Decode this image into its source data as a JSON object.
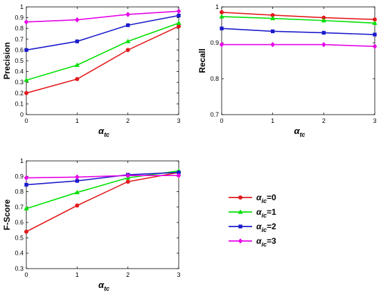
{
  "chart_data": [
    {
      "type": "line",
      "ylabel": "Precision",
      "xlabel": {
        "main": "α",
        "sub": "tc"
      },
      "x": [
        0,
        1,
        2,
        3
      ],
      "xticks": [
        "0",
        "1",
        "2",
        "3"
      ],
      "ylim": [
        0,
        1
      ],
      "yticks": [
        "0",
        "0.1",
        "0.2",
        "0.3",
        "0.4",
        "0.5",
        "0.6",
        "0.7",
        "0.8",
        "0.9",
        "1"
      ],
      "series": [
        {
          "name": "αic=0",
          "values": [
            0.2,
            0.33,
            0.6,
            0.82
          ]
        },
        {
          "name": "αic=1",
          "values": [
            0.32,
            0.46,
            0.68,
            0.85
          ]
        },
        {
          "name": "αic=2",
          "values": [
            0.6,
            0.68,
            0.83,
            0.92
          ]
        },
        {
          "name": "αic=3",
          "values": [
            0.86,
            0.88,
            0.93,
            0.96
          ]
        }
      ]
    },
    {
      "type": "line",
      "ylabel": "Recall",
      "xlabel": {
        "main": "α",
        "sub": "tc"
      },
      "x": [
        0,
        1,
        2,
        3
      ],
      "xticks": [
        "0",
        "1",
        "2",
        "3"
      ],
      "ylim": [
        0.7,
        1
      ],
      "yticks": [
        "0.7",
        "0.8",
        "0.9",
        "1"
      ],
      "series": [
        {
          "name": "αic=0",
          "values": [
            0.985,
            0.977,
            0.97,
            0.965
          ]
        },
        {
          "name": "αic=1",
          "values": [
            0.973,
            0.968,
            0.962,
            0.955
          ]
        },
        {
          "name": "αic=2",
          "values": [
            0.94,
            0.932,
            0.928,
            0.923
          ]
        },
        {
          "name": "αic=3",
          "values": [
            0.895,
            0.895,
            0.895,
            0.89
          ]
        }
      ]
    },
    {
      "type": "line",
      "ylabel": "F-Score",
      "xlabel": {
        "main": "α",
        "sub": "tc"
      },
      "x": [
        0,
        1,
        2,
        3
      ],
      "xticks": [
        "0",
        "1",
        "2",
        "3"
      ],
      "ylim": [
        0.3,
        1
      ],
      "yticks": [
        "0.3",
        "0.4",
        "0.5",
        "0.6",
        "0.7",
        "0.8",
        "0.9",
        "1"
      ],
      "series": [
        {
          "name": "αic=0",
          "values": [
            0.54,
            0.71,
            0.865,
            0.925
          ]
        },
        {
          "name": "αic=1",
          "values": [
            0.69,
            0.795,
            0.89,
            0.935
          ]
        },
        {
          "name": "αic=2",
          "values": [
            0.845,
            0.87,
            0.91,
            0.925
          ]
        },
        {
          "name": "αic=3",
          "values": [
            0.89,
            0.895,
            0.905,
            0.905
          ]
        }
      ]
    }
  ],
  "legend": {
    "placement": "right of bottom chart",
    "entries": [
      {
        "main": "α",
        "sub": "ic",
        "suffix": "=0",
        "color": "#e31a1c",
        "marker": "circle"
      },
      {
        "main": "α",
        "sub": "ic",
        "suffix": "=1",
        "color": "#00e000",
        "marker": "triangle"
      },
      {
        "main": "α",
        "sub": "ic",
        "suffix": "=2",
        "color": "#1a1acc",
        "marker": "square"
      },
      {
        "main": "α",
        "sub": "ic",
        "suffix": "=3",
        "color": "#e600e6",
        "marker": "diamond"
      }
    ]
  },
  "series_styles": [
    {
      "color": "#e31a1c",
      "marker": "circle"
    },
    {
      "color": "#00e000",
      "marker": "triangle"
    },
    {
      "color": "#1a1acc",
      "marker": "square"
    },
    {
      "color": "#e600e6",
      "marker": "diamond"
    }
  ]
}
